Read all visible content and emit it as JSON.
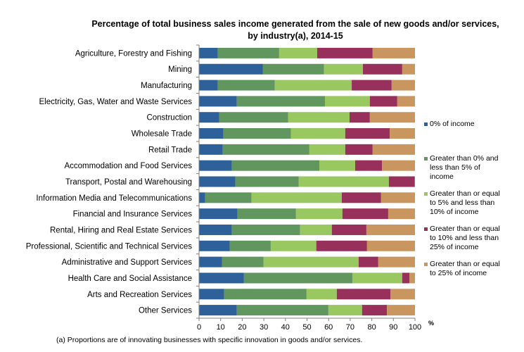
{
  "chart_data": {
    "type": "bar",
    "orientation": "horizontal",
    "stacked": true,
    "title": "Percentage of total business  sales income generated from the sale of new goods and/or services,",
    "subtitle": "by industry(a),  2014-15",
    "xlabel": "%",
    "xlim": [
      0,
      100
    ],
    "xticks": [
      "0",
      "10",
      "20",
      "30",
      "40",
      "50",
      "60",
      "70",
      "80",
      "90",
      "100"
    ],
    "grid": false,
    "legend_position": "right",
    "categories": [
      "Agriculture, Forestry and Fishing",
      "Mining",
      "Manufacturing",
      "Electricity, Gas, Water and Waste Services",
      "Construction",
      "Wholesale Trade",
      "Retail Trade",
      "Accommodation and Food Services",
      "Transport, Postal and Warehousing",
      "Information Media and Telecommunications",
      "Financial and Insurance Services",
      "Rental, Hiring and Real Estate Services",
      "Professional, Scientific and Technical Services",
      "Administrative and Support Services",
      "Health Care and Social Assistance",
      "Arts and Recreation Services",
      "Other Services"
    ],
    "series": [
      {
        "name": "0% of income",
        "color": "#2E6099",
        "values": [
          8.7,
          29.6,
          8.7,
          17.5,
          9.3,
          11.3,
          11.0,
          15.2,
          16.8,
          2.8,
          17.8,
          15.2,
          14.2,
          10.7,
          20.8,
          11.6,
          17.5
        ]
      },
      {
        "name": "Greater than 0% and less than 5% of income",
        "color": "#61975E",
        "values": [
          28.4,
          28.3,
          26.4,
          40.8,
          32.0,
          31.3,
          40.1,
          40.5,
          29.4,
          21.5,
          27.1,
          31.6,
          19.0,
          19.2,
          50.2,
          38.2,
          42.4
        ]
      },
      {
        "name": "Greater than or equal to 5% and less than 10% of income",
        "color": "#98C85F",
        "values": [
          17.6,
          18.0,
          35.6,
          20.8,
          28.4,
          25.1,
          16.6,
          16.6,
          41.7,
          41.8,
          21.5,
          14.7,
          21.1,
          44.0,
          23.1,
          14.0,
          15.6
        ]
      },
      {
        "name": "Greater than or equal to 10% and less than 25% of income",
        "color": "#98305C",
        "values": [
          25.7,
          18.2,
          18.5,
          12.7,
          9.4,
          20.6,
          12.7,
          12.4,
          12.0,
          18.2,
          21.2,
          16.0,
          23.5,
          9.1,
          3.3,
          24.8,
          11.5
        ]
      },
      {
        "name": "Greater than or equal to 25% of income",
        "color": "#C9965F",
        "values": [
          19.6,
          5.9,
          10.8,
          8.2,
          20.9,
          11.7,
          19.6,
          15.3,
          0.1,
          15.7,
          12.4,
          22.5,
          22.2,
          17.0,
          2.6,
          11.4,
          13.0
        ]
      }
    ],
    "legend_lines": [
      [
        "0% of income"
      ],
      [
        "Greater than 0% and",
        "less than 5% of",
        "income"
      ],
      [
        "Greater than or equal",
        "to 5% and less than",
        "10% of income"
      ],
      [
        "Greater than or equal",
        "to 10% and less than",
        "25% of income"
      ],
      [
        "Greater than or equal",
        "to 25% of income"
      ]
    ],
    "footnote": "(a) Proportions are of innovating businesses with specific innovation in goods and/or services."
  }
}
